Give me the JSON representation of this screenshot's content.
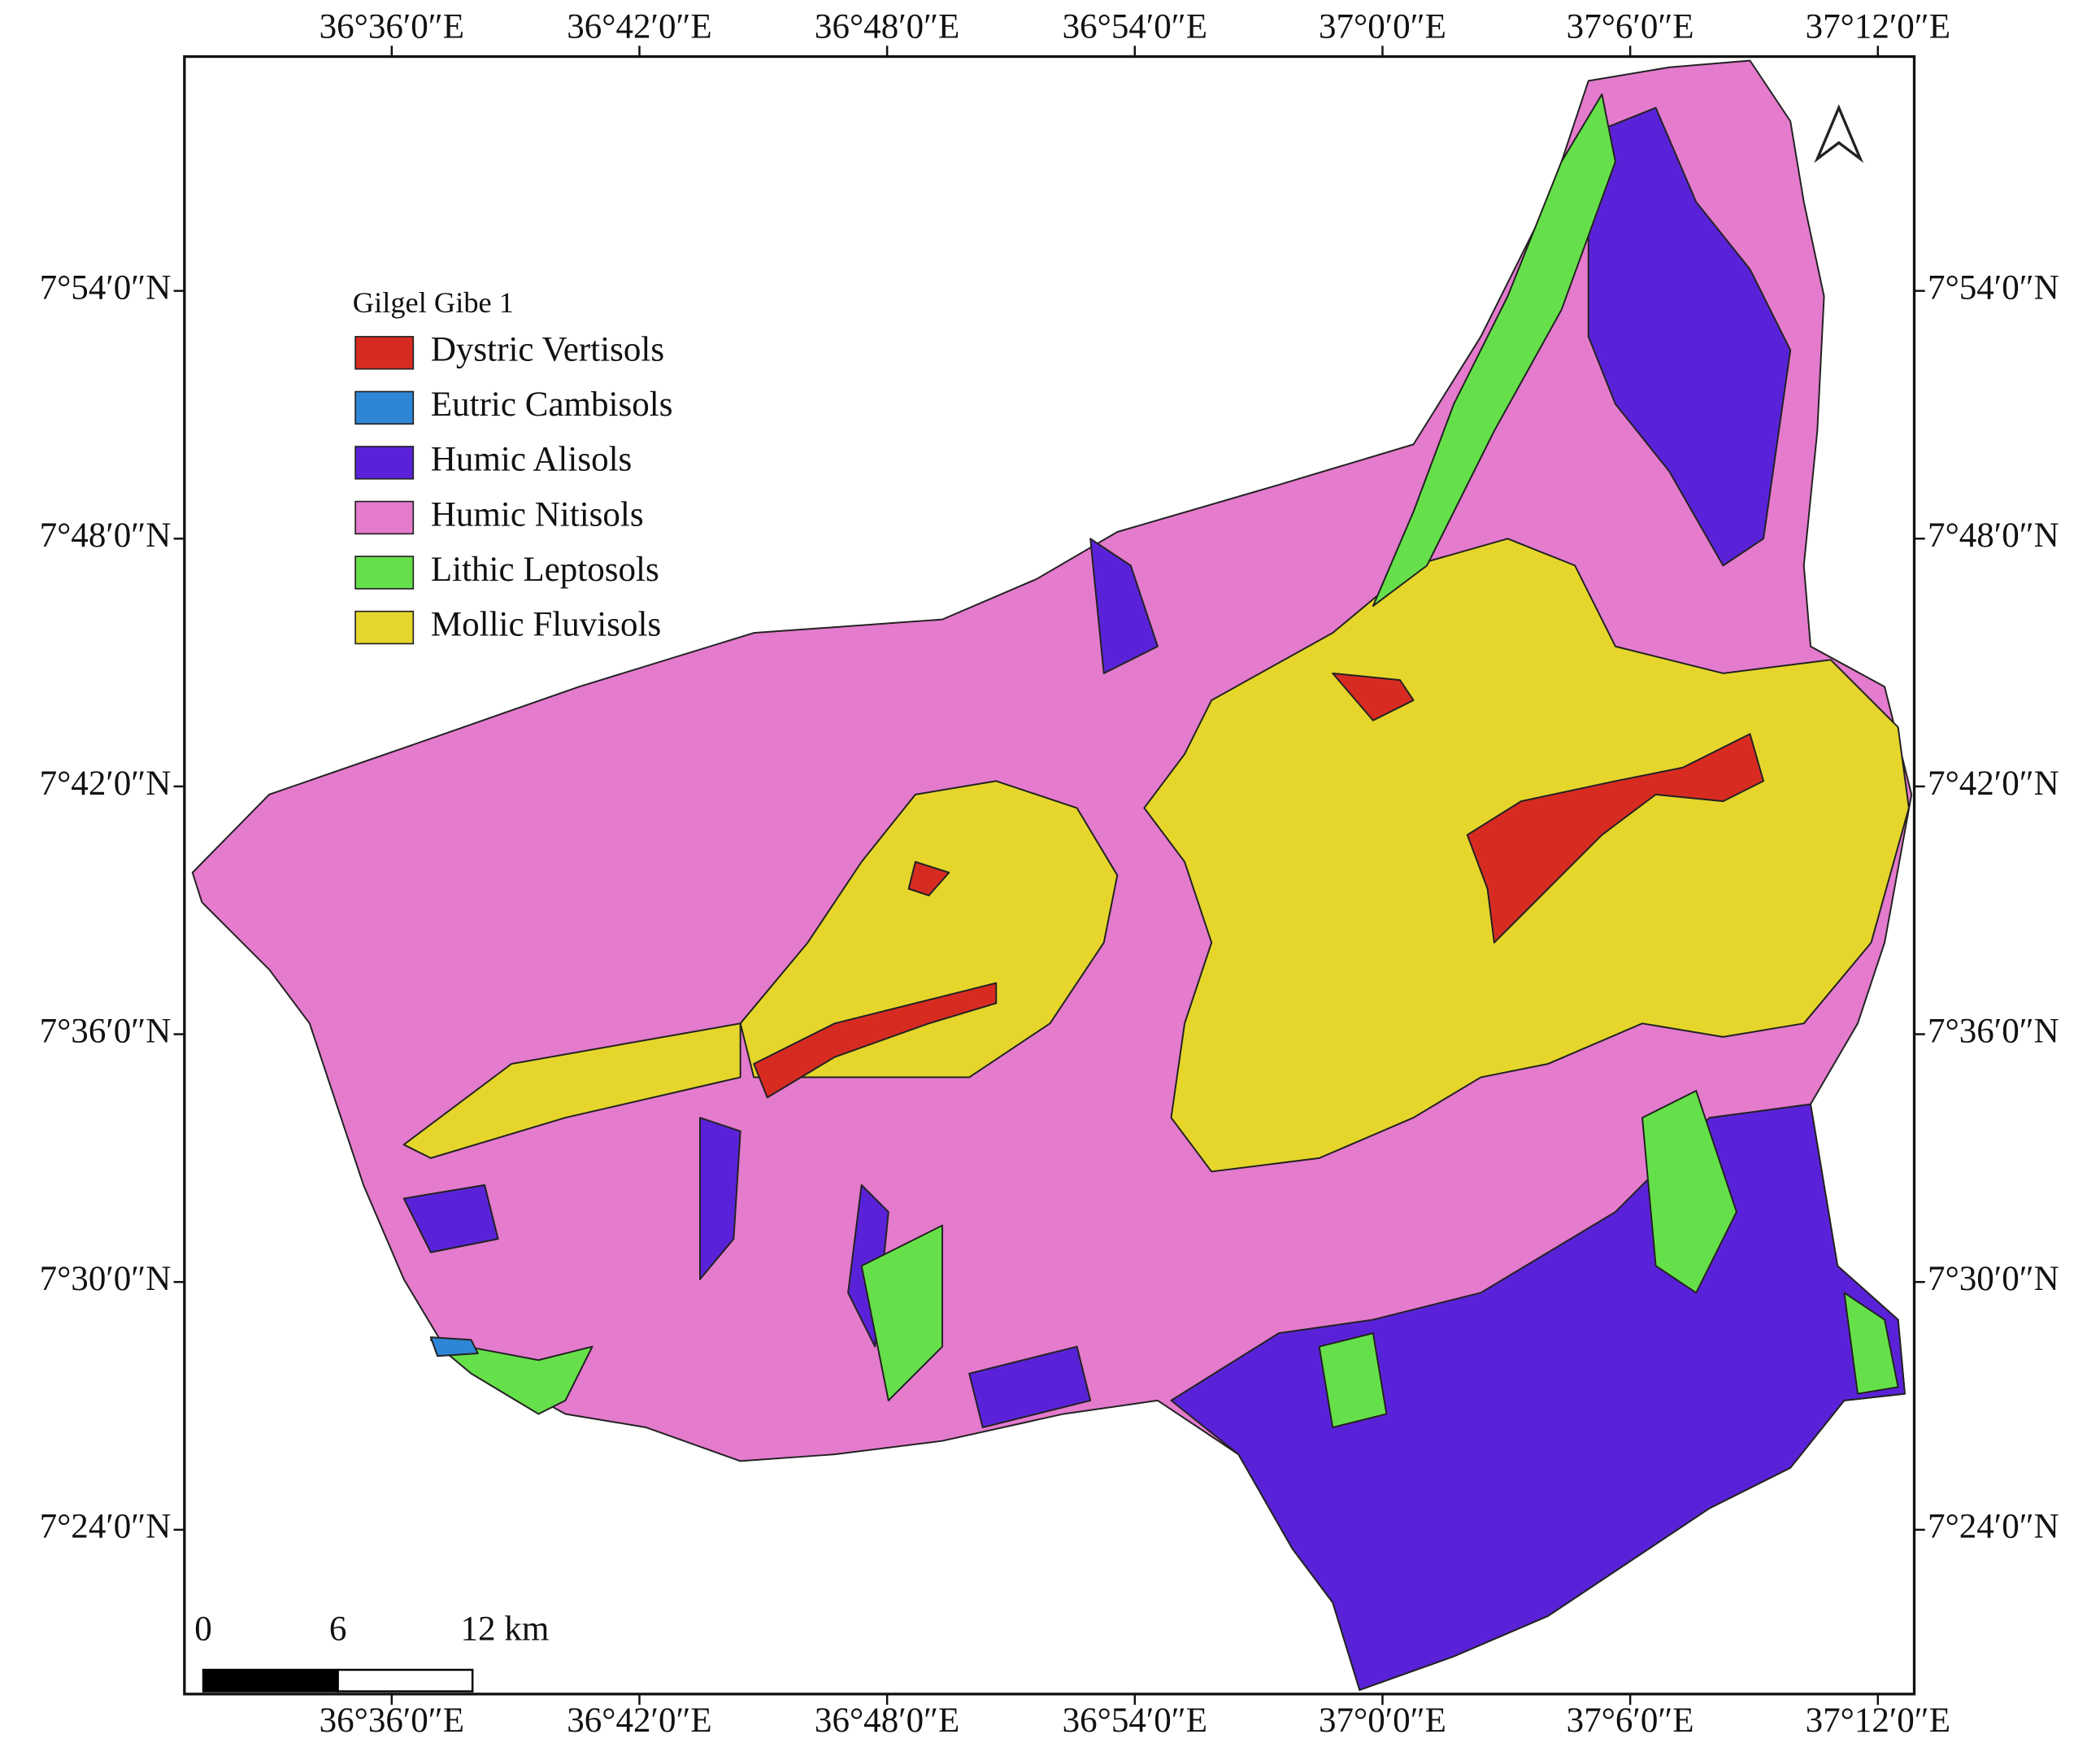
{
  "map": {
    "legend": {
      "title": "Gilgel Gibe 1",
      "items": [
        {
          "label": "Dystric Vertisols",
          "color": "#d72b22"
        },
        {
          "label": "Eutric Cambisols",
          "color": "#2f86d6"
        },
        {
          "label": "Humic Alisols",
          "color": "#5a22d8"
        },
        {
          "label": "Humic Nitisols",
          "color": "#e47bcd"
        },
        {
          "label": "Lithic Leptosols",
          "color": "#66e04a"
        },
        {
          "label": "Mollic Fluvisols",
          "color": "#e6d62c"
        }
      ]
    },
    "longitude_labels": [
      "36°36′0″E",
      "36°42′0″E",
      "36°48′0″E",
      "36°54′0″E",
      "37°0′0″E",
      "37°6′0″E",
      "37°12′0″E"
    ],
    "latitude_labels": [
      "7°54′0″N",
      "7°48′0″N",
      "7°42′0″N",
      "7°36′0″N",
      "7°30′0″N",
      "7°24′0″N"
    ],
    "scale_bar": {
      "labels": [
        "0",
        "6",
        "12 km"
      ]
    }
  }
}
